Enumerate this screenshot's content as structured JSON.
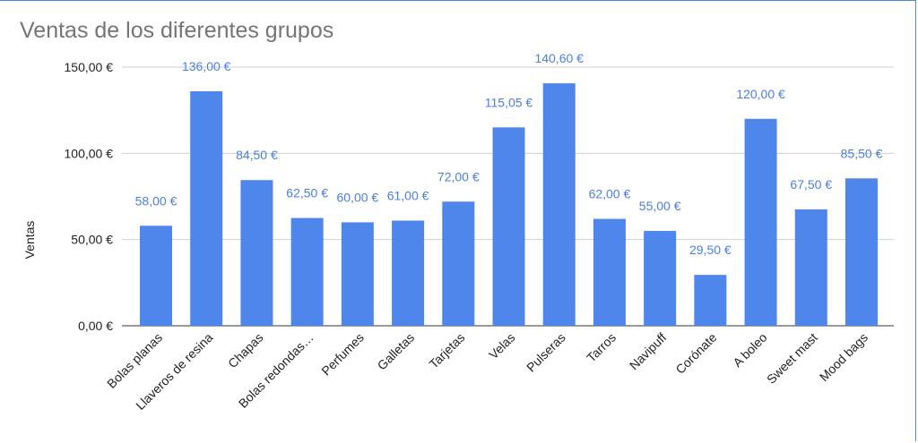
{
  "chart_data": {
    "type": "bar",
    "title": "Ventas de los diferentes grupos",
    "xlabel": "",
    "ylabel": "Ventas",
    "ylim": [
      0,
      150
    ],
    "yticks": [
      0,
      50,
      100,
      150
    ],
    "ytick_labels": [
      "0,00 €",
      "50,00 €",
      "100,00 €",
      "150,00 €"
    ],
    "grid": true,
    "legend": "none",
    "bar_color": "#4f86ec",
    "label_color": "#4a7fe4",
    "categories": [
      "Bolas planas",
      "Llaveros de resina",
      "Chapas",
      "Bolas redondas…",
      "Perfumes",
      "Galletas",
      "Tarjetas",
      "Velas",
      "Pulseras",
      "Tarros",
      "Navipuff",
      "Corónate",
      "A boleo",
      "Sweet mast",
      "Mood bags"
    ],
    "values": [
      58,
      136,
      84.5,
      62.5,
      60,
      61,
      72,
      115.05,
      140.6,
      62,
      55,
      29.5,
      120,
      67.5,
      85.5
    ],
    "value_labels": [
      "58,00 €",
      "136,00 €",
      "84,50 €",
      "62,50 €",
      "60,00 €",
      "61,00 €",
      "72,00 €",
      "115,05 €",
      "140,60 €",
      "62,00 €",
      "55,00 €",
      "29,50 €",
      "120,00 €",
      "67,50 €",
      "85,50 €"
    ]
  }
}
